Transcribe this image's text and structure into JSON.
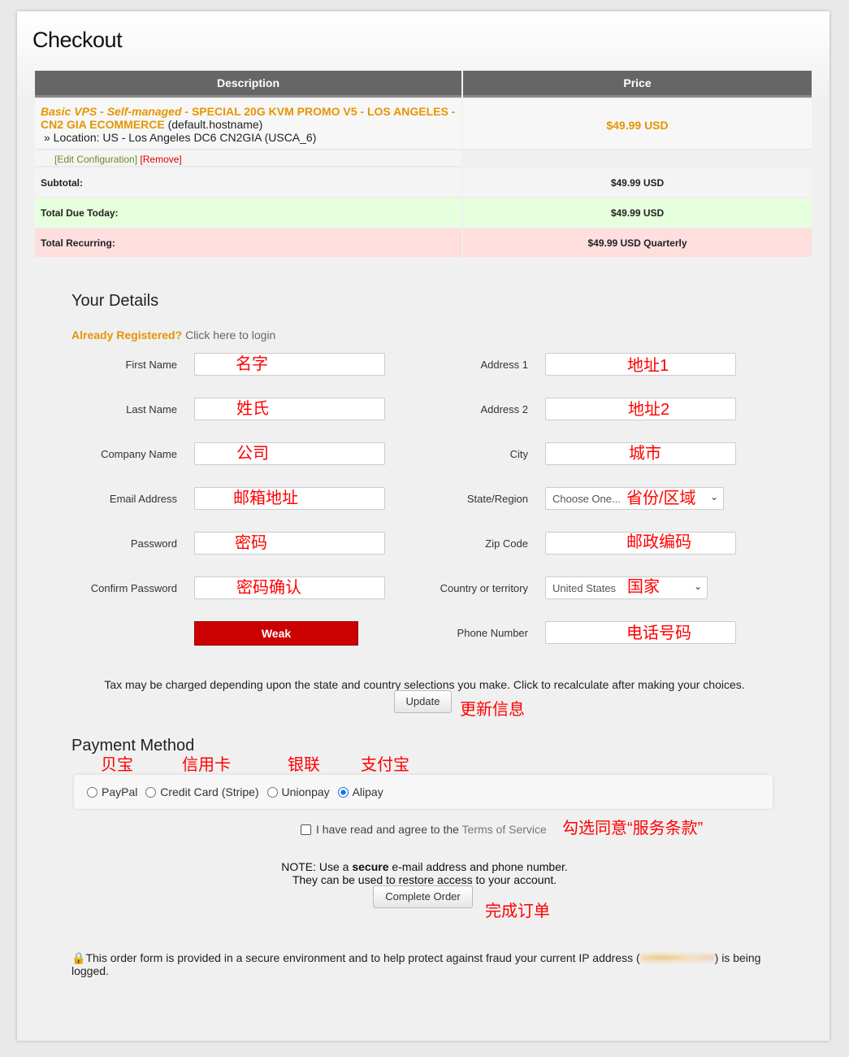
{
  "title": "Checkout",
  "cart": {
    "headers": {
      "description": "Description",
      "price": "Price"
    },
    "item": {
      "group": "Basic VPS - Self-managed",
      "product": " - SPECIAL 20G KVM PROMO V5 - LOS ANGELES - CN2 GIA ECOMMERCE",
      "hostname": " (default.hostname)",
      "location": "» Location: US - Los Angeles DC6 CN2GIA (USCA_6)",
      "price": "$49.99 USD",
      "edit": "[Edit Configuration]",
      "remove": "[Remove]"
    },
    "subtotal": {
      "label": "Subtotal:",
      "value": "$49.99 USD"
    },
    "due_today": {
      "label": "Total Due Today:",
      "value": "$49.99 USD"
    },
    "recurring": {
      "label": "Total Recurring:",
      "value": "$49.99 USD Quarterly"
    }
  },
  "details": {
    "heading": "Your Details",
    "already_registered": "Already Registered?",
    "login_link": "Click here to login",
    "fields": {
      "first_name": "First Name",
      "last_name": "Last Name",
      "company": "Company Name",
      "email": "Email Address",
      "password": "Password",
      "confirm_password": "Confirm Password",
      "address1": "Address 1",
      "address2": "Address 2",
      "city": "City",
      "state": "State/Region",
      "zip": "Zip Code",
      "country": "Country or territory",
      "phone": "Phone Number"
    },
    "state_value": "Choose One...",
    "country_value": "United States",
    "password_strength": "Weak",
    "tax_note": "Tax may be charged depending upon the state and country selections you make. Click to recalculate after making your choices.",
    "update_button": "Update"
  },
  "payment": {
    "heading": "Payment Method",
    "options": [
      "PayPal",
      "Credit Card (Stripe)",
      "Unionpay",
      "Alipay"
    ],
    "selected": "Alipay"
  },
  "tos": {
    "text": "I have read and agree to the ",
    "link": "Terms of Service"
  },
  "note": {
    "line1_a": "NOTE: Use a ",
    "line1_b": "secure",
    "line1_c": " e-mail address and phone number.",
    "line2": "They can be used to restore access to your account."
  },
  "complete_button": "Complete Order",
  "security": {
    "text": "This order form is provided in a secure environment and to help protect against fraud your current IP address (",
    "text_end": ") is being logged."
  },
  "annotations": {
    "first_name": "名字",
    "last_name": "姓氏",
    "company": "公司",
    "email": "邮箱地址",
    "password": "密码",
    "confirm_password": "密码确认",
    "address1": "地址1",
    "address2": "地址2",
    "city": "城市",
    "state": "省份/区域",
    "zip": "邮政编码",
    "country": "国家",
    "phone": "电话号码",
    "update": "更新信息",
    "paypal": "贝宝",
    "card": "信用卡",
    "unionpay": "银联",
    "alipay": "支付宝",
    "tos": "勾选同意“服务条款”",
    "complete": "完成订单"
  },
  "colors": {
    "accent": "#e69500",
    "weak": "#cc0000",
    "annotation": "#ff0000",
    "due_bg": "#e6ffdc",
    "recurring_bg": "#ffdede"
  }
}
